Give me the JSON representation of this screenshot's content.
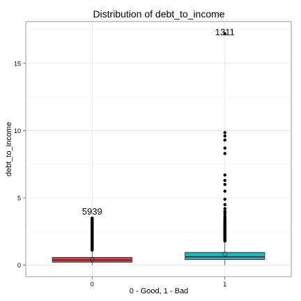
{
  "chart_data": {
    "type": "box",
    "title": "Distribution of debt_to_income",
    "xlabel": "0 - Good, 1 - Bad",
    "ylabel": "debt_to_income",
    "grid": true,
    "ylim": [
      -0.85,
      18.1
    ],
    "yticks": [
      0,
      5,
      10,
      15
    ],
    "categories": [
      "0",
      "1"
    ],
    "colors": {
      "0": "#c0504d",
      "1": "#1fb3b6"
    },
    "boxes": [
      {
        "category": "0",
        "q1": 0.22,
        "median": 0.38,
        "q3": 0.58,
        "lower_whisker": 0.0,
        "upper_whisker": 1.1,
        "mean": 0.41,
        "count_label": "5939",
        "count_label_y": 3.75,
        "outliers": [
          1.12,
          1.16,
          1.2,
          1.25,
          1.3,
          1.35,
          1.4,
          1.45,
          1.5,
          1.55,
          1.6,
          1.65,
          1.7,
          1.75,
          1.8,
          1.85,
          1.9,
          1.95,
          2.0,
          2.05,
          2.1,
          2.15,
          2.2,
          2.25,
          2.3,
          2.35,
          2.4,
          2.45,
          2.5,
          2.55,
          2.6,
          2.65,
          2.7,
          2.75,
          2.8,
          2.85,
          2.9,
          2.95,
          3.0,
          3.05,
          3.1,
          3.15,
          3.2,
          3.25,
          3.3,
          3.35,
          3.4,
          3.45,
          3.5
        ]
      },
      {
        "category": "1",
        "q1": 0.42,
        "median": 0.62,
        "q3": 0.95,
        "lower_whisker": 0.0,
        "upper_whisker": 1.75,
        "mean": 0.82,
        "count_label": "1311",
        "count_label_y": 17.1,
        "outliers": [
          1.8,
          1.86,
          1.92,
          1.98,
          2.04,
          2.1,
          2.16,
          2.22,
          2.28,
          2.34,
          2.4,
          2.46,
          2.52,
          2.58,
          2.64,
          2.7,
          2.76,
          2.82,
          2.88,
          2.94,
          3.0,
          3.06,
          3.12,
          3.18,
          3.24,
          3.3,
          3.4,
          3.5,
          3.6,
          3.75,
          3.9,
          4.0,
          4.2,
          4.5,
          4.9,
          5.5,
          6.0,
          6.3,
          6.7,
          8.3,
          8.7,
          9.3,
          9.6,
          9.85,
          17.2
        ]
      }
    ]
  }
}
